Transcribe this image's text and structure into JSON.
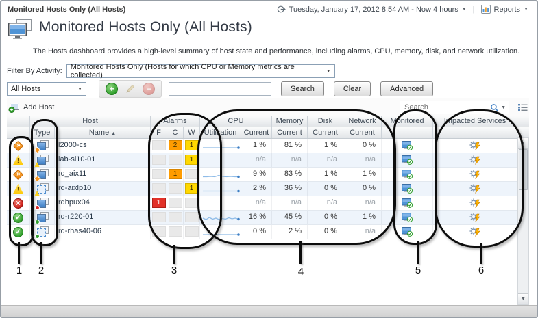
{
  "page": {
    "breadcrumb": "Monitored Hosts Only (All Hosts)",
    "title": "Monitored Hosts Only (All Hosts)",
    "description": "The Hosts dashboard provides a high-level summary of host state and performance, including alarms, CPU, memory, disk, and network utilization.",
    "time_range": "Tuesday, January 17, 2012 8:54 AM - Now 4 hours",
    "reports_label": "Reports"
  },
  "filter": {
    "label": "Filter By Activity:",
    "value": "Monitored Hosts Only (Hosts for which CPU or Memory metrics are collected)"
  },
  "toolbar": {
    "scope_value": "All Hosts",
    "search_value": "",
    "search_button": "Search",
    "clear_button": "Clear",
    "advanced_button": "Advanced"
  },
  "grid_toolbar": {
    "add_host": "Add Host",
    "search_placeholder": "Search"
  },
  "table": {
    "groups": {
      "host": "Host",
      "alarms": "Alarms",
      "cpu": "CPU",
      "memory": "Memory",
      "disk": "Disk",
      "network": "Network",
      "monitored": "Monitored",
      "impacted": "Impacted Services"
    },
    "cols": {
      "type": "Type",
      "name": "Name",
      "sort": "▲",
      "f": "F",
      "c": "C",
      "w": "W",
      "utilization": "Utilization",
      "current": "Current"
    },
    "rows": [
      {
        "name": "l2000-cs",
        "status": "critical",
        "type": "solid",
        "badge": "critical",
        "f": "",
        "c": "2",
        "w": "1",
        "spark": [
          10,
          10,
          10,
          10,
          10,
          10,
          10,
          10,
          10,
          10
        ],
        "cpu": "1 %",
        "memory": "81 %",
        "disk": "1 %",
        "network": "0 %"
      },
      {
        "name": "lab-sl10-01",
        "status": "warning",
        "type": "solid",
        "badge": "warning",
        "f": "",
        "c": "",
        "w": "1",
        "spark": null,
        "cpu": "n/a",
        "memory": "n/a",
        "disk": "n/a",
        "network": "n/a"
      },
      {
        "name": "rd_aix11",
        "status": "critical",
        "type": "solid",
        "badge": "critical",
        "f": "",
        "c": "1",
        "w": "",
        "spark": [
          10.5,
          10.5,
          10,
          10.5,
          8.5,
          10,
          10.5,
          10,
          10.5,
          10.5
        ],
        "cpu": "9 %",
        "memory": "83 %",
        "disk": "1 %",
        "network": "1 %"
      },
      {
        "name": "rd-aixlp10",
        "status": "warning",
        "type": "dashed",
        "badge": "warning",
        "f": "",
        "c": "",
        "w": "1",
        "spark": [
          10.5,
          10.5,
          10.5,
          10.5,
          10.5,
          10.5,
          10.5,
          10.5,
          10.5,
          10.5
        ],
        "cpu": "2 %",
        "memory": "36 %",
        "disk": "0 %",
        "network": "0 %"
      },
      {
        "name": "rdhpux04",
        "status": "fatal",
        "type": "solid",
        "badge": "fatal",
        "f": "1",
        "c": "",
        "w": "",
        "spark": null,
        "cpu": "n/a",
        "memory": "n/a",
        "disk": "n/a",
        "network": "n/a"
      },
      {
        "name": "rd-r220-01",
        "status": "normal",
        "type": "solid",
        "badge": "normal",
        "f": "",
        "c": "",
        "w": "",
        "spark": [
          8,
          10,
          7,
          9.5,
          8,
          10,
          8.5,
          9.5,
          7.5,
          9,
          8,
          9.5
        ],
        "cpu": "16 %",
        "memory": "45 %",
        "disk": "0 %",
        "network": "1 %"
      },
      {
        "name": "rd-rhas40-06",
        "status": "normal",
        "type": "dashed",
        "badge": "normal",
        "f": "",
        "c": "",
        "w": "",
        "spark": [
          11,
          11,
          11,
          11,
          11,
          11,
          11,
          11,
          11,
          11
        ],
        "cpu": "0 %",
        "memory": "2 %",
        "disk": "0 %",
        "network": "n/a"
      }
    ]
  },
  "annotations": [
    "1",
    "2",
    "3",
    "4",
    "5",
    "6"
  ],
  "colors": {
    "critical": "#F7941D",
    "warning": "#FFD21E",
    "fatal": "#DB2B28",
    "normal": "#35A030",
    "alarm_fatal_cell": "#E23128",
    "alarm_critical_cell": "#FF9C00",
    "alarm_warning_cell": "#FFD800",
    "alt_row": "#EEF4FB",
    "spark": "#8FBCE8",
    "spark_dot": "#3F7FC4"
  }
}
